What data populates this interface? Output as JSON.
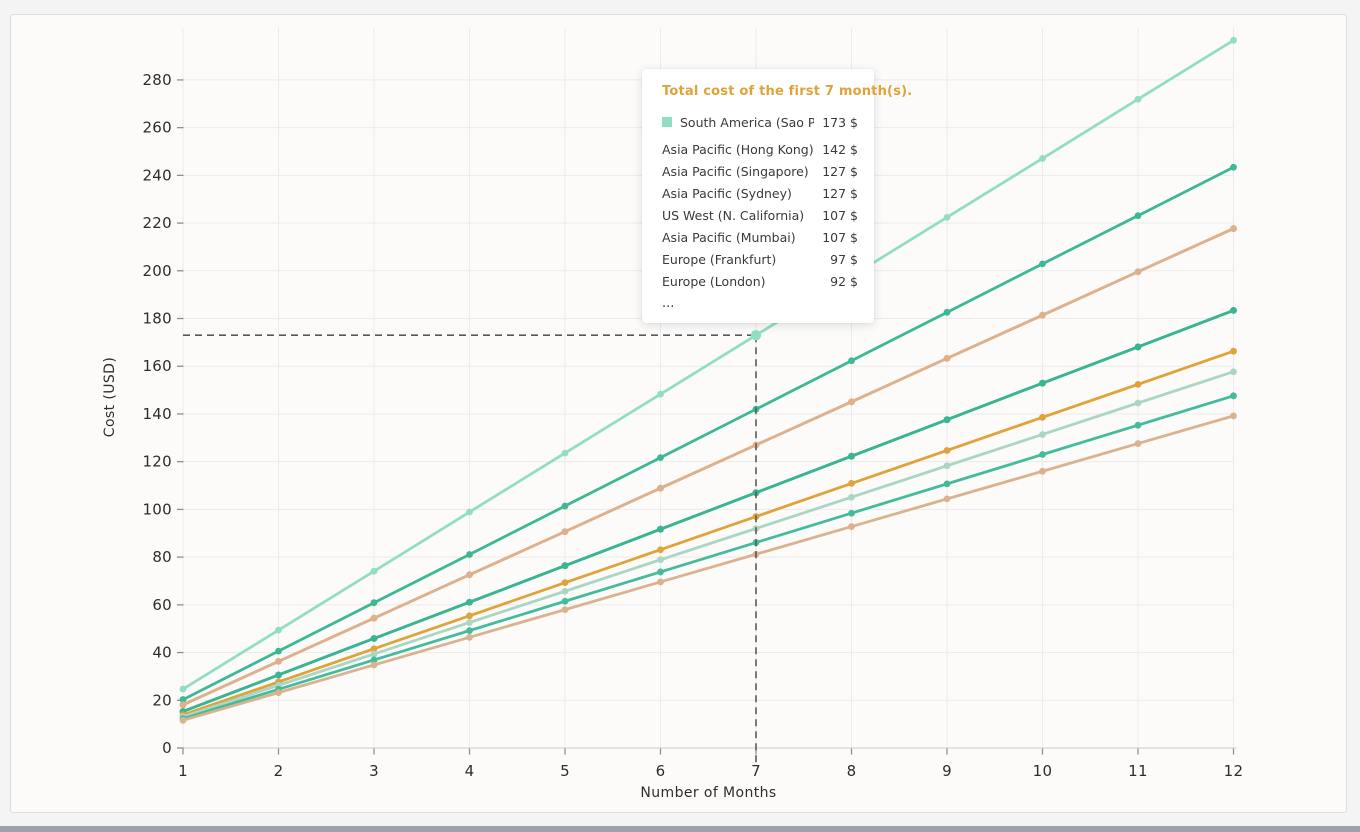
{
  "chart_data": {
    "type": "line",
    "title": "",
    "xlabel": "Number of Months",
    "ylabel": "Cost (USD)",
    "x": [
      1,
      2,
      3,
      4,
      5,
      6,
      7,
      8,
      9,
      10,
      11,
      12
    ],
    "xlim": [
      1,
      12
    ],
    "ylim": [
      0,
      300
    ],
    "y_ticks": [
      0,
      20,
      40,
      60,
      80,
      100,
      120,
      140,
      160,
      180,
      200,
      220,
      240,
      260,
      280
    ],
    "grid": true,
    "grid_color": "#ebebeb",
    "axis_color": "#d5d5d5",
    "tick_mark_color": "#8f8f8f",
    "text_color": "#2d2d2d",
    "legend_position": "tooltip-overlay",
    "series": [
      {
        "name": "South America (Sao Paulo)",
        "color": "#92dec2",
        "values": [
          24.7,
          49.4,
          74.1,
          98.9,
          123.6,
          148.3,
          173.0,
          197.7,
          222.4,
          247.1,
          271.9,
          296.6
        ]
      },
      {
        "name": "Asia Pacific (Hong Kong)",
        "color": "#3db896",
        "values": [
          20.3,
          40.6,
          60.9,
          81.1,
          101.4,
          121.7,
          142.0,
          162.3,
          182.6,
          202.9,
          223.1,
          243.4
        ]
      },
      {
        "name": "Asia Pacific (Singapore)",
        "color": "#deb18c",
        "values": [
          18.1,
          36.3,
          54.4,
          72.6,
          90.7,
          108.9,
          127.0,
          145.1,
          163.3,
          181.4,
          199.6,
          217.7
        ]
      },
      {
        "name": "Asia Pacific (Sydney)",
        "color": "#deb18c",
        "values": [
          18.1,
          36.3,
          54.4,
          72.6,
          90.7,
          108.9,
          127.0,
          145.1,
          163.3,
          181.4,
          199.6,
          217.7
        ]
      },
      {
        "name": "US West (N. California)",
        "color": "#3bb493",
        "values": [
          15.3,
          30.6,
          45.9,
          61.1,
          76.4,
          91.7,
          107.0,
          122.3,
          137.6,
          152.9,
          168.1,
          183.4
        ]
      },
      {
        "name": "Asia Pacific (Mumbai)",
        "color": "#3bb493",
        "values": [
          15.3,
          30.6,
          45.9,
          61.1,
          76.4,
          91.7,
          107.0,
          122.3,
          137.6,
          152.9,
          168.1,
          183.4
        ]
      },
      {
        "name": "Europe (Frankfurt)",
        "color": "#e0a339",
        "values": [
          13.9,
          27.7,
          41.6,
          55.4,
          69.3,
          83.1,
          97.0,
          110.9,
          124.7,
          138.6,
          152.4,
          166.3
        ]
      },
      {
        "name": "Europe (London)",
        "color": "#aad6c3",
        "values": [
          13.1,
          26.3,
          39.4,
          52.6,
          65.7,
          78.9,
          92.0,
          105.1,
          118.3,
          131.4,
          144.6,
          157.7
        ]
      },
      {
        "name": "",
        "color": "#44bc9c",
        "values": [
          12.3,
          24.6,
          36.9,
          49.2,
          61.5,
          73.8,
          86.1,
          98.4,
          110.7,
          123.0,
          135.3,
          147.6
        ]
      },
      {
        "name": "",
        "color": "#dab28f",
        "values": [
          11.6,
          23.2,
          34.8,
          46.4,
          58.0,
          69.6,
          81.2,
          92.8,
          104.4,
          116.0,
          127.6,
          139.2
        ]
      }
    ],
    "crosshair": {
      "month": 7,
      "value": 173,
      "color": "#5a5a5a"
    }
  },
  "tooltip": {
    "title": "Total cost of the first 7 month(s).",
    "title_color": "#e0a339",
    "rows": [
      {
        "label": "South America (Sao Paulo)",
        "value": "173 $",
        "swatch": "#92dec2"
      },
      {
        "label": "Asia Pacific (Hong Kong)",
        "value": "142 $"
      },
      {
        "label": "Asia Pacific (Singapore)",
        "value": "127 $"
      },
      {
        "label": "Asia Pacific (Sydney)",
        "value": "127 $"
      },
      {
        "label": "US West (N. California)",
        "value": "107 $"
      },
      {
        "label": "Asia Pacific (Mumbai)",
        "value": "107 $"
      },
      {
        "label": "Europe (Frankfurt)",
        "value": "97 $"
      },
      {
        "label": "Europe (London)",
        "value": "92 $"
      }
    ],
    "more_indicator": "..."
  }
}
